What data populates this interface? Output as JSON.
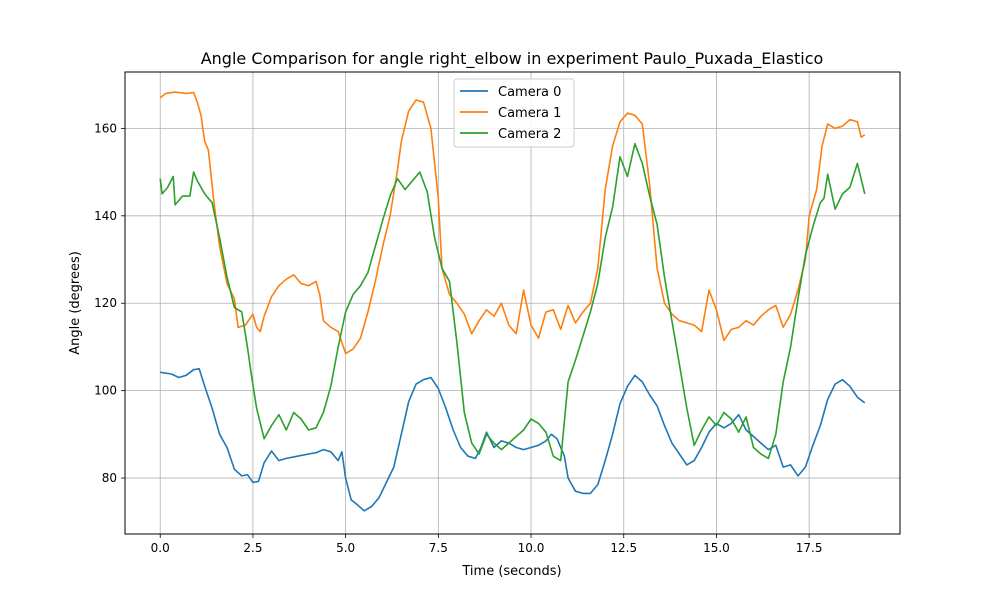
{
  "chart_data": {
    "type": "line",
    "title": "Angle Comparison for angle right_elbow in experiment Paulo_Puxada_Elastico",
    "xlabel": "Time (seconds)",
    "ylabel": "Angle (degrees)",
    "xlim": [
      -0.95,
      19.95
    ],
    "ylim": [
      67.2,
      172.9
    ],
    "xticks": [
      0.0,
      2.5,
      5.0,
      7.5,
      10.0,
      12.5,
      15.0,
      17.5
    ],
    "xtick_labels": [
      "0.0",
      "2.5",
      "5.0",
      "7.5",
      "10.0",
      "12.5",
      "15.0",
      "17.5"
    ],
    "yticks": [
      80,
      100,
      120,
      140,
      160
    ],
    "ytick_labels": [
      "80",
      "100",
      "120",
      "140",
      "160"
    ],
    "grid": true,
    "legend_position": "top-center",
    "series": [
      {
        "name": "Camera 0",
        "color": "#1f77b4",
        "points": [
          [
            0.0,
            104.2
          ],
          [
            0.3,
            103.8
          ],
          [
            0.5,
            103.0
          ],
          [
            0.7,
            103.5
          ],
          [
            0.9,
            104.8
          ],
          [
            1.05,
            105.0
          ],
          [
            1.2,
            101.0
          ],
          [
            1.4,
            96.0
          ],
          [
            1.6,
            90.0
          ],
          [
            1.8,
            87.0
          ],
          [
            2.0,
            82.0
          ],
          [
            2.2,
            80.5
          ],
          [
            2.35,
            80.8
          ],
          [
            2.5,
            79.0
          ],
          [
            2.65,
            79.2
          ],
          [
            2.8,
            83.5
          ],
          [
            3.0,
            86.2
          ],
          [
            3.2,
            84.0
          ],
          [
            3.4,
            84.5
          ],
          [
            3.7,
            85.0
          ],
          [
            4.0,
            85.5
          ],
          [
            4.2,
            85.8
          ],
          [
            4.4,
            86.5
          ],
          [
            4.6,
            86.0
          ],
          [
            4.8,
            84.0
          ],
          [
            4.9,
            86.0
          ],
          [
            5.0,
            80.0
          ],
          [
            5.15,
            75.0
          ],
          [
            5.3,
            74.0
          ],
          [
            5.5,
            72.5
          ],
          [
            5.7,
            73.5
          ],
          [
            5.9,
            75.5
          ],
          [
            6.1,
            79.0
          ],
          [
            6.3,
            82.5
          ],
          [
            6.5,
            90.0
          ],
          [
            6.7,
            97.5
          ],
          [
            6.9,
            101.5
          ],
          [
            7.1,
            102.5
          ],
          [
            7.3,
            103.0
          ],
          [
            7.5,
            100.5
          ],
          [
            7.7,
            96.0
          ],
          [
            7.9,
            91.0
          ],
          [
            8.1,
            87.0
          ],
          [
            8.3,
            85.0
          ],
          [
            8.5,
            84.5
          ],
          [
            8.65,
            87.0
          ],
          [
            8.8,
            90.5
          ],
          [
            9.0,
            87.0
          ],
          [
            9.2,
            88.5
          ],
          [
            9.4,
            88.0
          ],
          [
            9.6,
            87.0
          ],
          [
            9.8,
            86.5
          ],
          [
            10.0,
            87.0
          ],
          [
            10.2,
            87.5
          ],
          [
            10.4,
            88.5
          ],
          [
            10.55,
            90.0
          ],
          [
            10.7,
            89.0
          ],
          [
            10.9,
            85.0
          ],
          [
            11.0,
            80.0
          ],
          [
            11.2,
            77.0
          ],
          [
            11.4,
            76.5
          ],
          [
            11.6,
            76.5
          ],
          [
            11.8,
            78.5
          ],
          [
            12.0,
            84.0
          ],
          [
            12.2,
            90.0
          ],
          [
            12.4,
            97.0
          ],
          [
            12.6,
            101.0
          ],
          [
            12.8,
            103.5
          ],
          [
            13.0,
            102.0
          ],
          [
            13.2,
            99.0
          ],
          [
            13.4,
            96.5
          ],
          [
            13.6,
            92.0
          ],
          [
            13.8,
            88.0
          ],
          [
            14.0,
            85.5
          ],
          [
            14.2,
            83.0
          ],
          [
            14.4,
            84.0
          ],
          [
            14.6,
            87.0
          ],
          [
            14.8,
            90.5
          ],
          [
            15.0,
            92.5
          ],
          [
            15.2,
            91.5
          ],
          [
            15.4,
            92.5
          ],
          [
            15.6,
            94.5
          ],
          [
            15.8,
            91.0
          ],
          [
            16.0,
            89.5
          ],
          [
            16.2,
            88.0
          ],
          [
            16.4,
            86.5
          ],
          [
            16.6,
            87.5
          ],
          [
            16.8,
            82.5
          ],
          [
            17.0,
            83.0
          ],
          [
            17.2,
            80.5
          ],
          [
            17.4,
            82.5
          ],
          [
            17.6,
            87.5
          ],
          [
            17.8,
            92.0
          ],
          [
            18.0,
            98.0
          ],
          [
            18.2,
            101.5
          ],
          [
            18.4,
            102.5
          ],
          [
            18.6,
            101.0
          ],
          [
            18.8,
            98.5
          ],
          [
            19.0,
            97.2
          ]
        ]
      },
      {
        "name": "Camera 1",
        "color": "#ff7f0e",
        "points": [
          [
            0.0,
            167.0
          ],
          [
            0.15,
            168.0
          ],
          [
            0.4,
            168.3
          ],
          [
            0.7,
            168.0
          ],
          [
            0.9,
            168.2
          ],
          [
            1.0,
            166.0
          ],
          [
            1.1,
            163.0
          ],
          [
            1.2,
            157.0
          ],
          [
            1.3,
            155.0
          ],
          [
            1.45,
            143.0
          ],
          [
            1.6,
            133.0
          ],
          [
            1.8,
            124.5
          ],
          [
            2.0,
            121.0
          ],
          [
            2.1,
            114.5
          ],
          [
            2.3,
            115.0
          ],
          [
            2.5,
            117.5
          ],
          [
            2.6,
            114.5
          ],
          [
            2.7,
            113.5
          ],
          [
            2.8,
            117.0
          ],
          [
            3.0,
            121.5
          ],
          [
            3.2,
            124.0
          ],
          [
            3.4,
            125.5
          ],
          [
            3.6,
            126.5
          ],
          [
            3.8,
            124.5
          ],
          [
            4.0,
            124.0
          ],
          [
            4.2,
            125.0
          ],
          [
            4.3,
            122.0
          ],
          [
            4.4,
            116.0
          ],
          [
            4.6,
            114.5
          ],
          [
            4.8,
            113.5
          ],
          [
            4.9,
            111.0
          ],
          [
            5.0,
            108.5
          ],
          [
            5.2,
            109.5
          ],
          [
            5.4,
            112.0
          ],
          [
            5.6,
            118.0
          ],
          [
            5.8,
            125.0
          ],
          [
            6.0,
            133.0
          ],
          [
            6.2,
            140.0
          ],
          [
            6.4,
            150.5
          ],
          [
            6.5,
            157.0
          ],
          [
            6.7,
            164.0
          ],
          [
            6.9,
            166.5
          ],
          [
            7.1,
            166.0
          ],
          [
            7.3,
            160.0
          ],
          [
            7.5,
            144.0
          ],
          [
            7.6,
            128.0
          ],
          [
            7.8,
            122.0
          ],
          [
            8.0,
            120.0
          ],
          [
            8.2,
            117.5
          ],
          [
            8.4,
            113.0
          ],
          [
            8.6,
            116.0
          ],
          [
            8.8,
            118.5
          ],
          [
            9.0,
            117.0
          ],
          [
            9.2,
            120.0
          ],
          [
            9.4,
            115.0
          ],
          [
            9.6,
            113.0
          ],
          [
            9.8,
            123.0
          ],
          [
            10.0,
            115.0
          ],
          [
            10.2,
            112.0
          ],
          [
            10.4,
            118.0
          ],
          [
            10.6,
            118.5
          ],
          [
            10.8,
            114.0
          ],
          [
            11.0,
            119.5
          ],
          [
            11.2,
            115.5
          ],
          [
            11.4,
            118.0
          ],
          [
            11.6,
            120.0
          ],
          [
            11.8,
            128.0
          ],
          [
            11.9,
            137.0
          ],
          [
            12.0,
            146.0
          ],
          [
            12.2,
            156.0
          ],
          [
            12.4,
            161.5
          ],
          [
            12.6,
            163.5
          ],
          [
            12.8,
            163.0
          ],
          [
            13.0,
            161.0
          ],
          [
            13.2,
            147.0
          ],
          [
            13.4,
            128.0
          ],
          [
            13.6,
            120.0
          ],
          [
            13.8,
            117.5
          ],
          [
            14.0,
            116.0
          ],
          [
            14.2,
            115.5
          ],
          [
            14.4,
            115.0
          ],
          [
            14.6,
            113.5
          ],
          [
            14.8,
            123.0
          ],
          [
            15.0,
            118.5
          ],
          [
            15.2,
            111.5
          ],
          [
            15.4,
            114.0
          ],
          [
            15.6,
            114.5
          ],
          [
            15.8,
            116.0
          ],
          [
            16.0,
            115.0
          ],
          [
            16.2,
            117.0
          ],
          [
            16.4,
            118.5
          ],
          [
            16.6,
            119.5
          ],
          [
            16.8,
            114.5
          ],
          [
            17.0,
            117.5
          ],
          [
            17.2,
            123.0
          ],
          [
            17.4,
            130.0
          ],
          [
            17.5,
            140.0
          ],
          [
            17.7,
            146.0
          ],
          [
            17.85,
            156.0
          ],
          [
            18.0,
            161.0
          ],
          [
            18.2,
            160.0
          ],
          [
            18.4,
            160.5
          ],
          [
            18.6,
            162.0
          ],
          [
            18.8,
            161.5
          ],
          [
            18.9,
            158.0
          ],
          [
            19.0,
            158.5
          ]
        ]
      },
      {
        "name": "Camera 2",
        "color": "#2ca02c",
        "points": [
          [
            0.0,
            148.5
          ],
          [
            0.05,
            145.0
          ],
          [
            0.2,
            146.5
          ],
          [
            0.35,
            149.0
          ],
          [
            0.4,
            142.5
          ],
          [
            0.6,
            144.5
          ],
          [
            0.8,
            144.5
          ],
          [
            0.9,
            150.0
          ],
          [
            1.0,
            148.0
          ],
          [
            1.2,
            145.0
          ],
          [
            1.4,
            143.0
          ],
          [
            1.6,
            135.0
          ],
          [
            1.8,
            126.0
          ],
          [
            2.0,
            119.0
          ],
          [
            2.2,
            118.0
          ],
          [
            2.35,
            110.0
          ],
          [
            2.45,
            104.0
          ],
          [
            2.6,
            96.0
          ],
          [
            2.8,
            89.0
          ],
          [
            3.0,
            92.0
          ],
          [
            3.2,
            94.5
          ],
          [
            3.4,
            91.0
          ],
          [
            3.6,
            95.0
          ],
          [
            3.8,
            93.5
          ],
          [
            4.0,
            91.0
          ],
          [
            4.2,
            91.5
          ],
          [
            4.4,
            95.0
          ],
          [
            4.6,
            101.0
          ],
          [
            4.8,
            110.0
          ],
          [
            5.0,
            118.0
          ],
          [
            5.2,
            122.0
          ],
          [
            5.4,
            124.0
          ],
          [
            5.6,
            127.0
          ],
          [
            5.8,
            133.0
          ],
          [
            6.0,
            139.0
          ],
          [
            6.2,
            144.5
          ],
          [
            6.4,
            148.5
          ],
          [
            6.6,
            146.0
          ],
          [
            6.8,
            148.0
          ],
          [
            7.0,
            150.0
          ],
          [
            7.2,
            145.5
          ],
          [
            7.4,
            135.0
          ],
          [
            7.6,
            128.0
          ],
          [
            7.8,
            125.0
          ],
          [
            8.0,
            111.0
          ],
          [
            8.2,
            95.0
          ],
          [
            8.4,
            88.0
          ],
          [
            8.6,
            85.5
          ],
          [
            8.8,
            90.0
          ],
          [
            9.0,
            88.0
          ],
          [
            9.2,
            86.5
          ],
          [
            9.4,
            88.0
          ],
          [
            9.6,
            89.5
          ],
          [
            9.8,
            91.0
          ],
          [
            10.0,
            93.5
          ],
          [
            10.2,
            92.5
          ],
          [
            10.4,
            90.5
          ],
          [
            10.6,
            85.0
          ],
          [
            10.8,
            84.0
          ],
          [
            11.0,
            102.0
          ],
          [
            11.2,
            107.0
          ],
          [
            11.4,
            112.5
          ],
          [
            11.6,
            118.0
          ],
          [
            11.8,
            124.5
          ],
          [
            12.0,
            135.0
          ],
          [
            12.2,
            142.0
          ],
          [
            12.4,
            153.5
          ],
          [
            12.6,
            149.0
          ],
          [
            12.8,
            156.5
          ],
          [
            13.0,
            152.0
          ],
          [
            13.2,
            144.5
          ],
          [
            13.4,
            138.0
          ],
          [
            13.6,
            126.0
          ],
          [
            13.8,
            116.0
          ],
          [
            14.0,
            106.0
          ],
          [
            14.2,
            96.0
          ],
          [
            14.4,
            87.5
          ],
          [
            14.6,
            91.0
          ],
          [
            14.8,
            94.0
          ],
          [
            15.0,
            92.0
          ],
          [
            15.2,
            95.0
          ],
          [
            15.4,
            93.5
          ],
          [
            15.6,
            90.5
          ],
          [
            15.8,
            94.0
          ],
          [
            16.0,
            87.0
          ],
          [
            16.2,
            85.5
          ],
          [
            16.4,
            84.5
          ],
          [
            16.6,
            90.0
          ],
          [
            16.8,
            102.0
          ],
          [
            17.0,
            110.0
          ],
          [
            17.2,
            121.0
          ],
          [
            17.4,
            131.0
          ],
          [
            17.6,
            137.5
          ],
          [
            17.8,
            143.0
          ],
          [
            17.9,
            144.0
          ],
          [
            18.0,
            149.5
          ],
          [
            18.2,
            141.5
          ],
          [
            18.4,
            145.0
          ],
          [
            18.6,
            146.5
          ],
          [
            18.8,
            152.0
          ],
          [
            19.0,
            145.0
          ]
        ]
      }
    ]
  }
}
